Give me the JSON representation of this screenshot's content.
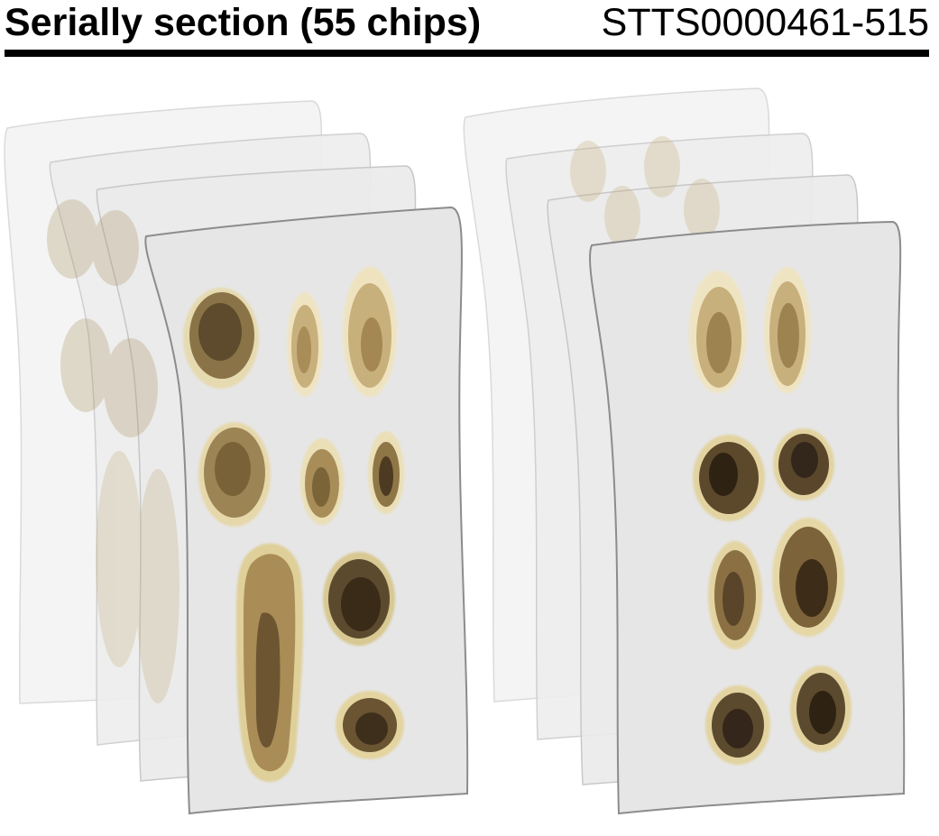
{
  "header": {
    "title": "Serially section (55 chips)",
    "slide_id": "STTS0000461-515"
  },
  "colors": {
    "title_text": "#000000",
    "rule": "#000000",
    "slide_face": "#e6e6e6",
    "slide_edge": "#8c8c8c",
    "tissue_light": "#e8dcb0",
    "tissue_mid": "#a8915e",
    "tissue_dark": "#3e2f1c"
  },
  "illustration": {
    "stacks": [
      {
        "name": "left-stack",
        "slides_shown": 4,
        "sections_on_front": 8
      },
      {
        "name": "right-stack",
        "slides_shown": 4,
        "sections_on_front": 8
      }
    ]
  }
}
